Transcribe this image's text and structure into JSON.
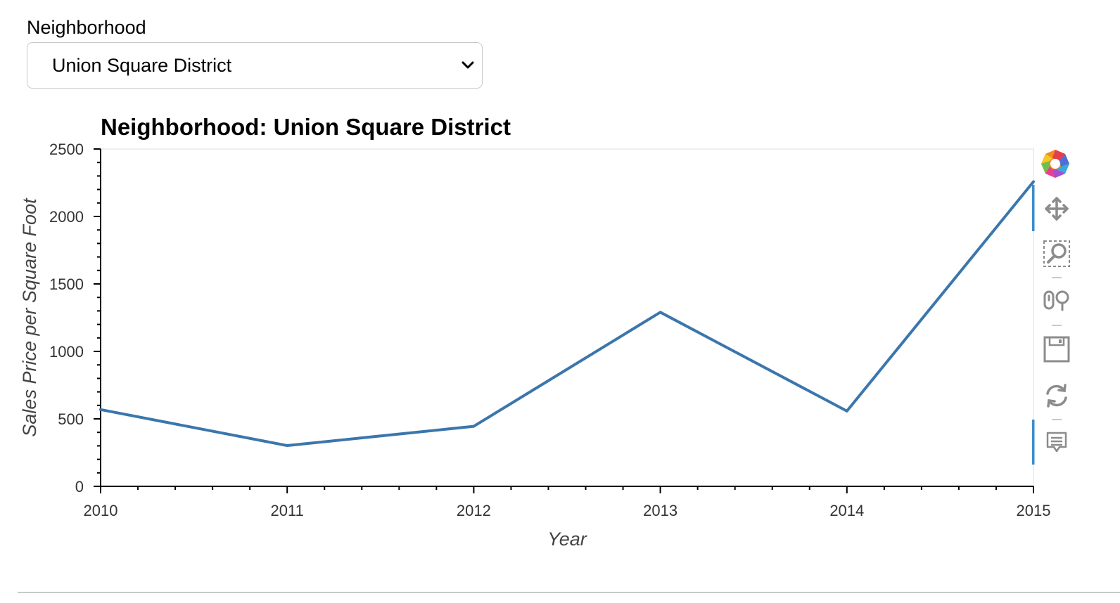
{
  "widget": {
    "label": "Neighborhood",
    "selected": "Union Square District"
  },
  "chart_data": {
    "type": "line",
    "title": "Neighborhood: Union Square District",
    "xlabel": "Year",
    "ylabel": "Sales Price per Square Foot",
    "x": [
      2010,
      2011,
      2012,
      2013,
      2014,
      2015
    ],
    "series": [
      {
        "values": [
          569,
          302,
          445,
          1290,
          558,
          2258
        ],
        "color": "#3b76ad"
      }
    ],
    "xlim": [
      2010,
      2015
    ],
    "ylim": [
      0,
      2500
    ],
    "xticks": [
      "2010",
      "2011",
      "2012",
      "2013",
      "2014",
      "2015"
    ],
    "yticks": [
      "0",
      "500",
      "1000",
      "1500",
      "2000",
      "2500"
    ],
    "grid": false
  },
  "toolbar": {
    "tools": [
      "bokeh-logo-icon",
      "pan-icon",
      "box-zoom-icon",
      "wheel-zoom-icon",
      "save-icon",
      "reset-icon",
      "hover-icon"
    ]
  }
}
